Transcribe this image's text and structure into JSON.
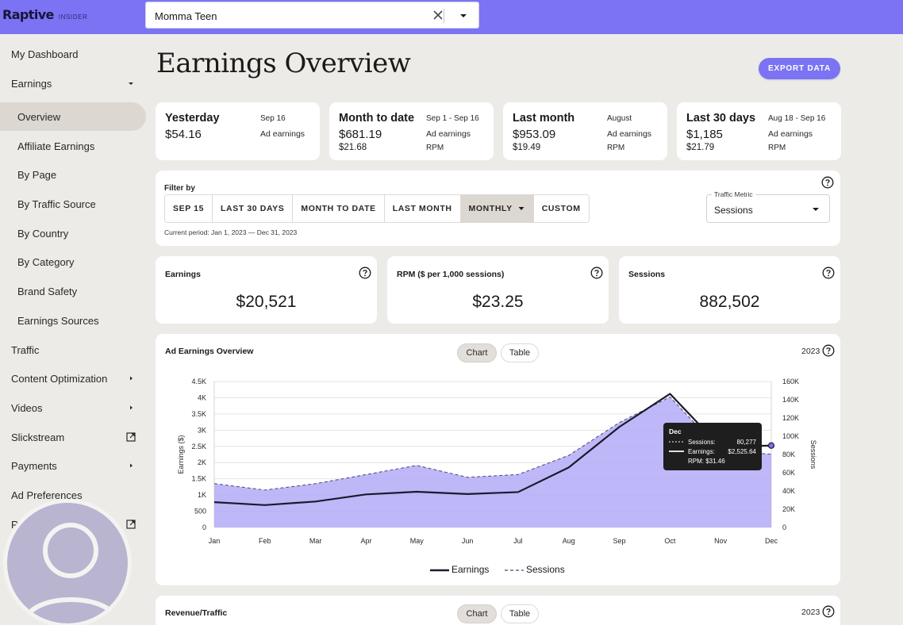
{
  "brand": {
    "logo": "Raptive",
    "sub": "INSIDER"
  },
  "site_select": {
    "value": "Momma Teen"
  },
  "sidebar": {
    "items": [
      {
        "label": "My Dashboard",
        "level": "top",
        "trail": ""
      },
      {
        "label": "Earnings",
        "level": "top",
        "trail": "caret-down"
      },
      {
        "label": "Overview",
        "level": "sub",
        "trail": "",
        "active": true
      },
      {
        "label": "Affiliate Earnings",
        "level": "sub",
        "trail": ""
      },
      {
        "label": "By Page",
        "level": "sub",
        "trail": ""
      },
      {
        "label": "By Traffic Source",
        "level": "sub",
        "trail": ""
      },
      {
        "label": "By Country",
        "level": "sub",
        "trail": ""
      },
      {
        "label": "By Category",
        "level": "sub",
        "trail": ""
      },
      {
        "label": "Brand Safety",
        "level": "sub",
        "trail": ""
      },
      {
        "label": "Earnings Sources",
        "level": "sub",
        "trail": ""
      },
      {
        "label": "Traffic",
        "level": "top",
        "trail": ""
      },
      {
        "label": "Content Optimization",
        "level": "top",
        "trail": "caret-right"
      },
      {
        "label": "Videos",
        "level": "top",
        "trail": "caret-right"
      },
      {
        "label": "Slickstream",
        "level": "top",
        "trail": "external-link"
      },
      {
        "label": "Payments",
        "level": "top",
        "trail": "caret-right"
      },
      {
        "label": "Ad Preferences",
        "level": "top",
        "trail": ""
      },
      {
        "label": "Resources",
        "level": "top",
        "trail": "external-link"
      }
    ]
  },
  "page": {
    "title": "Earnings Overview",
    "export_label": "EXPORT DATA"
  },
  "stats": [
    {
      "title": "Yesterday",
      "range": "Sep 16",
      "v1": "$54.16",
      "l1": "Ad earnings",
      "v2": "",
      "l2": ""
    },
    {
      "title": "Month to date",
      "range": "Sep 1 - Sep 16",
      "v1": "$681.19",
      "l1": "Ad earnings",
      "v2": "$21.68",
      "l2": "RPM"
    },
    {
      "title": "Last month",
      "range": "August",
      "v1": "$953.09",
      "l1": "Ad earnings",
      "v2": "$19.49",
      "l2": "RPM"
    },
    {
      "title": "Last 30 days",
      "range": "Aug 18 - Sep 16",
      "v1": "$1,185",
      "l1": "Ad earnings",
      "v2": "$21.79",
      "l2": "RPM"
    }
  ],
  "filter": {
    "label": "Filter by",
    "buttons": [
      {
        "label": "SEP 15",
        "active": false
      },
      {
        "label": "LAST 30 DAYS",
        "active": false
      },
      {
        "label": "MONTH TO DATE",
        "active": false
      },
      {
        "label": "LAST MONTH",
        "active": false
      },
      {
        "label": "MONTHLY",
        "active": true,
        "caret": true
      },
      {
        "label": "CUSTOM",
        "active": false
      }
    ],
    "period": "Current period: Jan 1, 2023 — Dec 31, 2023",
    "traffic_metric_label": "Traffic Metric",
    "traffic_metric_value": "Sessions"
  },
  "metrics": [
    {
      "title": "Earnings",
      "value": "$20,521"
    },
    {
      "title": "RPM ($ per 1,000 sessions)",
      "value": "$23.25"
    },
    {
      "title": "Sessions",
      "value": "882,502"
    }
  ],
  "ad_panel": {
    "title": "Ad Earnings Overview",
    "chart_label": "Chart",
    "table_label": "Table",
    "year": "2023"
  },
  "rev_panel": {
    "title": "Revenue/Traffic",
    "chart_label": "Chart",
    "table_label": "Table",
    "year": "2023"
  },
  "chart_data": {
    "type": "line",
    "title": "Ad Earnings Overview",
    "categories": [
      "Jan",
      "Feb",
      "Mar",
      "Apr",
      "May",
      "Jun",
      "Jul",
      "Aug",
      "Sep",
      "Oct",
      "Nov",
      "Dec"
    ],
    "series": [
      {
        "name": "Earnings",
        "axis": "left",
        "style": "solid",
        "values": [
          780,
          690,
          800,
          1020,
          1100,
          1030,
          1090,
          1850,
          3100,
          4120,
          2480,
          2525.64
        ]
      },
      {
        "name": "Sessions",
        "axis": "right",
        "style": "dashed-area",
        "values": [
          48000,
          41000,
          48000,
          58000,
          68000,
          55000,
          58000,
          79000,
          115000,
          143000,
          84000,
          80277
        ]
      }
    ],
    "ylabel": "Earnings ($)",
    "y2label": "Sessions",
    "ylim": [
      0,
      4500
    ],
    "y2lim": [
      0,
      160000
    ],
    "yticks": [
      "0",
      "500",
      "1K",
      "1.5K",
      "2K",
      "2.5K",
      "3K",
      "3.5K",
      "4K",
      "4.5K"
    ],
    "y2ticks": [
      "0",
      "20K",
      "40K",
      "60K",
      "80K",
      "100K",
      "120K",
      "140K",
      "160K"
    ],
    "grid": true,
    "legend": "bottom",
    "tooltip": {
      "title": "Dec",
      "rows": [
        {
          "label": "Sessions:",
          "value": "80,277"
        },
        {
          "label": "Earnings:",
          "value": "$2,525.64"
        },
        {
          "label": "RPM: $31.46",
          "value": ""
        }
      ]
    },
    "colors": {
      "line": "#1b1a2e",
      "area": "#b3acf7",
      "area_stroke": "#4a4676",
      "accent": "#7b73f3"
    }
  }
}
